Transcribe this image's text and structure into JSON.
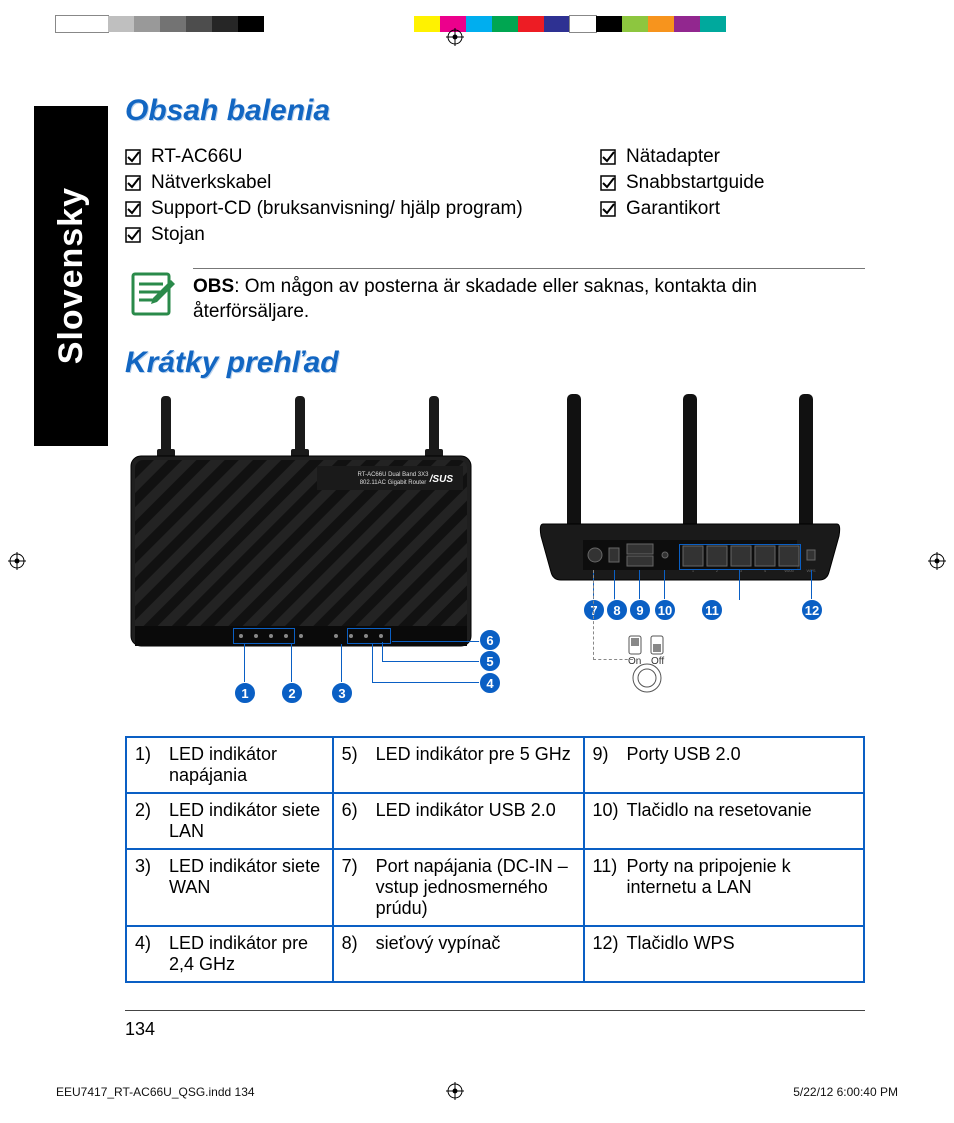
{
  "colorbar_swatches": [
    {
      "w": 52,
      "c": "#ffffff",
      "border": "#888"
    },
    {
      "w": 26,
      "c": "#bfbfbf"
    },
    {
      "w": 26,
      "c": "#999999"
    },
    {
      "w": 26,
      "c": "#737373"
    },
    {
      "w": 26,
      "c": "#4d4d4d"
    },
    {
      "w": 26,
      "c": "#262626"
    },
    {
      "w": 26,
      "c": "#000000"
    },
    {
      "w": 150,
      "c": "transparent"
    },
    {
      "w": 26,
      "c": "#fff200"
    },
    {
      "w": 26,
      "c": "#ec008c"
    },
    {
      "w": 26,
      "c": "#00aeef"
    },
    {
      "w": 26,
      "c": "#00a651"
    },
    {
      "w": 26,
      "c": "#ed1c24"
    },
    {
      "w": 26,
      "c": "#2e3192"
    },
    {
      "w": 26,
      "c": "#ffffff",
      "border": "#888"
    },
    {
      "w": 26,
      "c": "#000000"
    },
    {
      "w": 26,
      "c": "#8dc63f"
    },
    {
      "w": 26,
      "c": "#f7941d"
    },
    {
      "w": 26,
      "c": "#92278f"
    },
    {
      "w": 26,
      "c": "#00a99d"
    }
  ],
  "language_tab": "Slovensky",
  "section1_title": "Obsah balenia",
  "contents_col1": [
    "RT-AC66U",
    "Nätverkskabel",
    "Support-CD (bruksanvisning/ hjälp program)",
    "Stojan"
  ],
  "contents_col2": [
    "Nätadapter",
    "Snabbstartguide",
    "Garantikort"
  ],
  "note_label": "OBS",
  "note_text": ":  Om någon av posterna är skadade eller saknas, kontakta din återförsäljare.",
  "section2_title": "Krátky prehľad",
  "router_label1": "RT-AC66U Dual Band 3X3",
  "router_label2": "802.11AC Gigabit Router",
  "front_callouts": [
    "1",
    "2",
    "3",
    "4",
    "5",
    "6"
  ],
  "back_callouts": [
    "7",
    "8",
    "9",
    "10",
    "11",
    "12"
  ],
  "on_label": "On",
  "off_label": "Off",
  "legend_rows": [
    [
      {
        "n": "1)",
        "t": "LED indikátor napájania"
      },
      {
        "n": "5)",
        "t": "LED indikátor pre 5 GHz"
      },
      {
        "n": "9)",
        "t": "Porty USB 2.0"
      }
    ],
    [
      {
        "n": "2)",
        "t": "LED indikátor siete LAN"
      },
      {
        "n": "6)",
        "t": "LED indikátor USB 2.0"
      },
      {
        "n": "10)",
        "t": "Tlačidlo na resetovanie"
      }
    ],
    [
      {
        "n": "3)",
        "t": "LED indikátor siete WAN"
      },
      {
        "n": "7)",
        "t": "Port napájania (DC-IN – vstup jednosmerného prúdu)"
      },
      {
        "n": "11)",
        "t": "Porty na pripojenie k internetu a LAN"
      }
    ],
    [
      {
        "n": "4)",
        "t": "LED indikátor pre 2,4 GHz"
      },
      {
        "n": "8)",
        "t": "sieťový vypínač"
      },
      {
        "n": "12)",
        "t": "Tlačidlo WPS"
      }
    ]
  ],
  "page_number": "134",
  "slug_left": "EEU7417_RT-AC66U_QSG.indd   134",
  "slug_right": "5/22/12   6:00:40 PM",
  "colors": {
    "heading": "#1266c2",
    "accent": "#0a5fc4",
    "black": "#000000"
  }
}
